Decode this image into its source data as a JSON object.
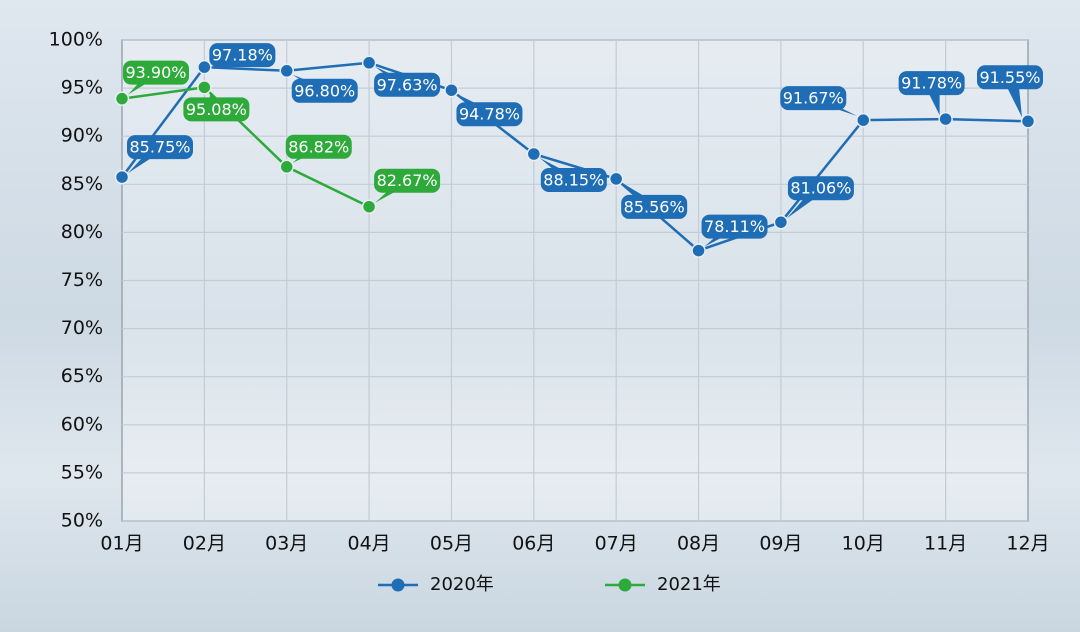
{
  "chart_data": {
    "type": "line",
    "categories": [
      "01月",
      "02月",
      "03月",
      "04月",
      "05月",
      "06月",
      "07月",
      "08月",
      "09月",
      "10月",
      "11月",
      "12月"
    ],
    "series": [
      {
        "name": "2020年",
        "color": "#1f6db5",
        "values": [
          85.75,
          97.18,
          96.8,
          97.63,
          94.78,
          88.15,
          85.56,
          78.11,
          81.06,
          91.67,
          91.78,
          91.55
        ],
        "value_labels": [
          "85.75%",
          "97.18%",
          "96.80%",
          "97.63%",
          "94.78%",
          "88.15%",
          "85.56%",
          "78.11%",
          "81.06%",
          "91.67%",
          "91.78%",
          "91.55%"
        ]
      },
      {
        "name": "2021年",
        "color": "#2eaa3a",
        "values": [
          93.9,
          95.08,
          86.82,
          82.67,
          null,
          null,
          null,
          null,
          null,
          null,
          null,
          null
        ],
        "value_labels": [
          "93.90%",
          "95.08%",
          "86.82%",
          "82.67%",
          null,
          null,
          null,
          null,
          null,
          null,
          null,
          null
        ]
      }
    ],
    "ylim": [
      50,
      100
    ],
    "yticks": [
      {
        "value": 50,
        "label": "50%"
      },
      {
        "value": 55,
        "label": "55%"
      },
      {
        "value": 60,
        "label": "60%"
      },
      {
        "value": 65,
        "label": "65%"
      },
      {
        "value": 70,
        "label": "70%"
      },
      {
        "value": 75,
        "label": "75%"
      },
      {
        "value": 80,
        "label": "80%"
      },
      {
        "value": 85,
        "label": "85%"
      },
      {
        "value": 90,
        "label": "90%"
      },
      {
        "value": 95,
        "label": "95%"
      },
      {
        "value": 100,
        "label": "100%"
      }
    ],
    "grid": true
  }
}
